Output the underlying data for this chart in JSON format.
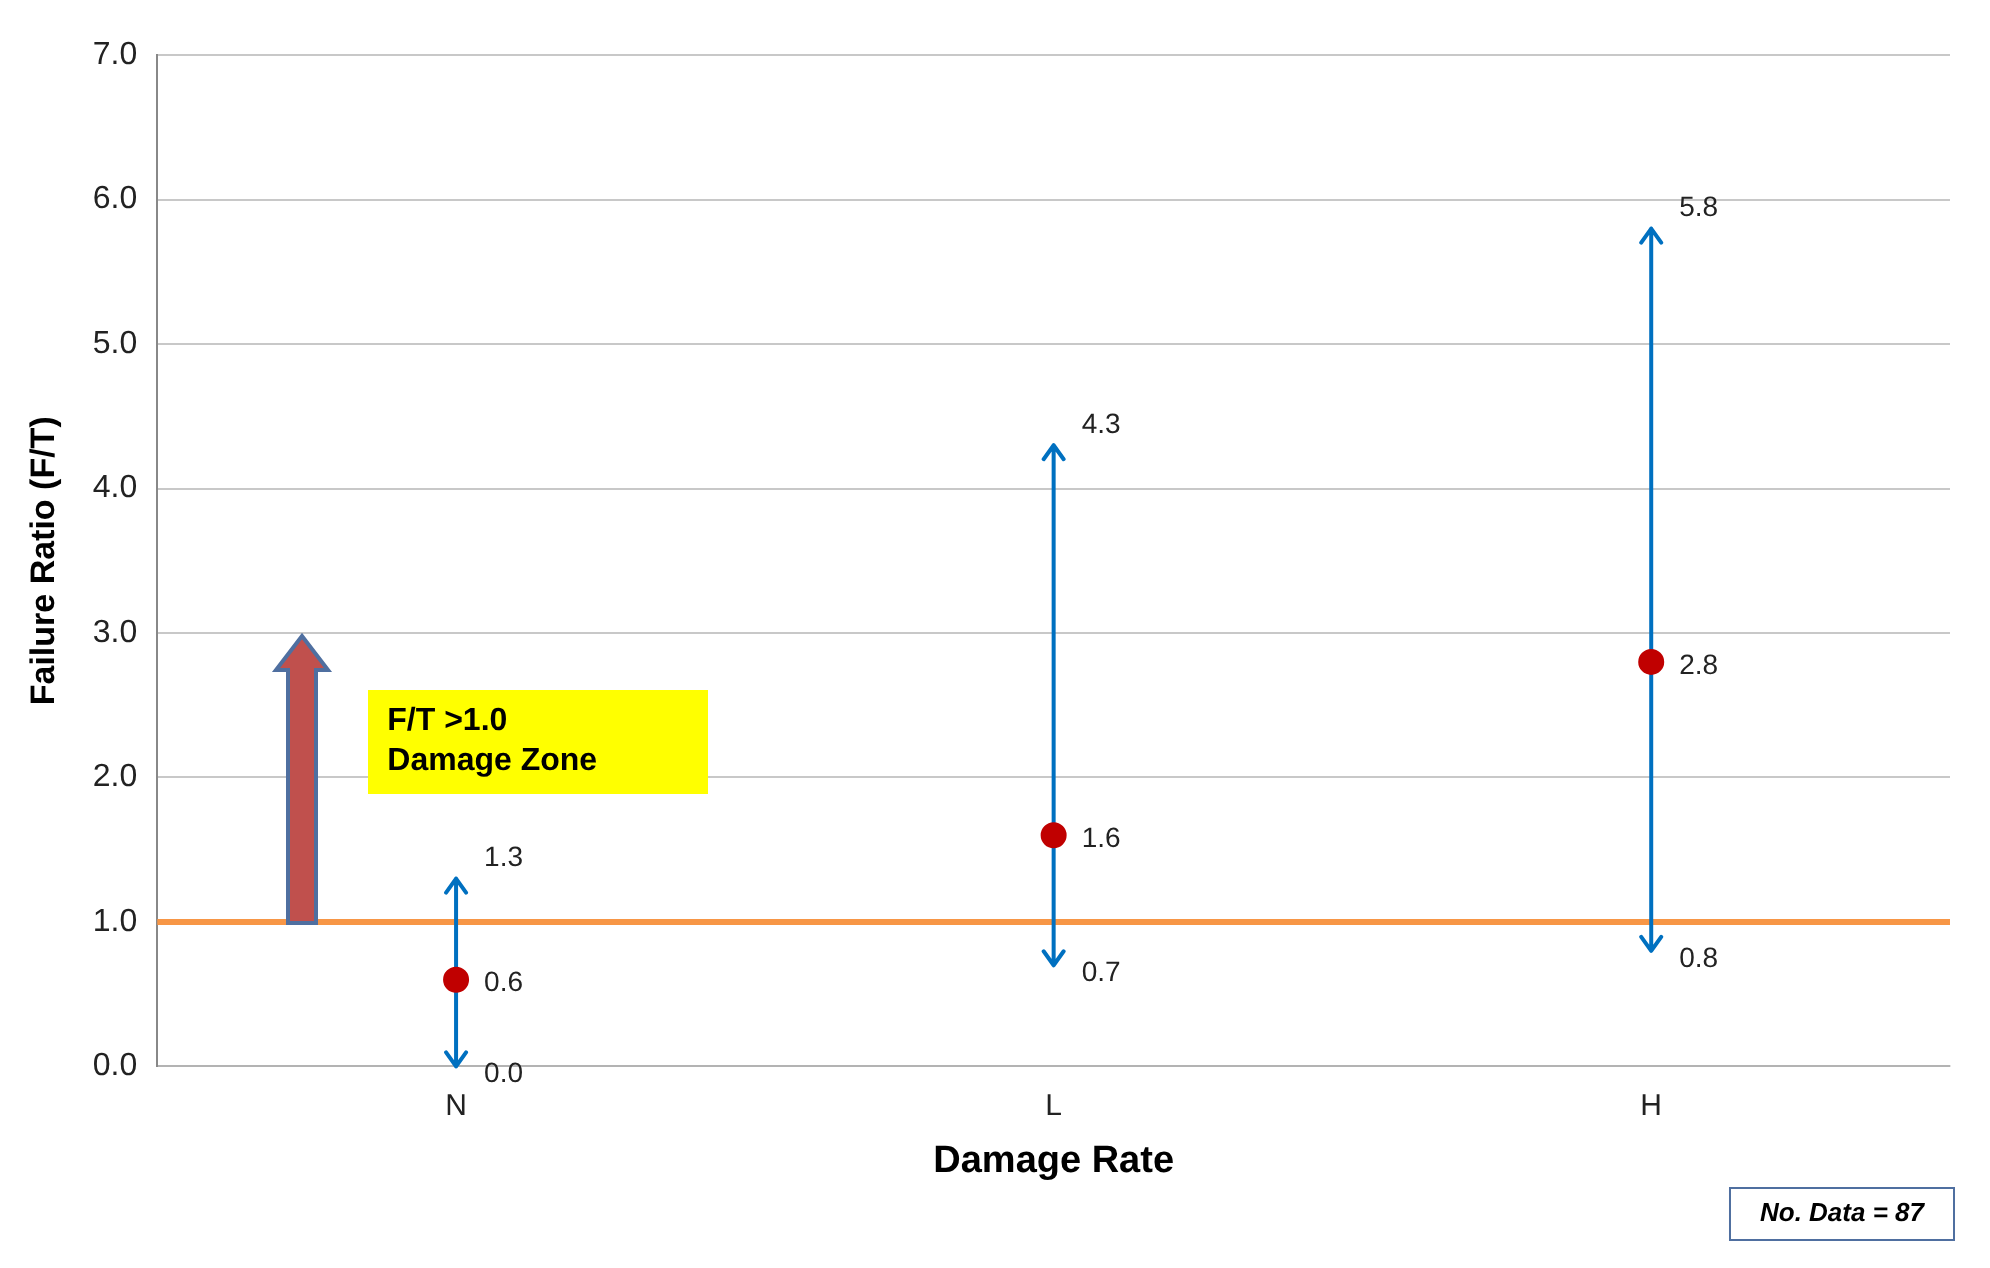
{
  "chart_data": {
    "type": "scatter",
    "xlabel": "Damage Rate",
    "ylabel": "Failure Ratio (F/T)",
    "categories": [
      "N",
      "L",
      "H"
    ],
    "values": [
      0.6,
      1.6,
      2.8
    ],
    "color": "#c00000",
    "errors": [
      [
        0.0,
        1.3
      ],
      [
        0.7,
        4.3
      ],
      [
        0.8,
        5.8
      ]
    ],
    "data_labels": true,
    "marker": "circle",
    "ylim": [
      0,
      7
    ],
    "yticks": [
      {
        "value": 0,
        "label": "0.0"
      },
      {
        "value": 1,
        "label": "1.0"
      },
      {
        "value": 2,
        "label": "2.0"
      },
      {
        "value": 3,
        "label": "3.0"
      },
      {
        "value": 4,
        "label": "4.0"
      },
      {
        "value": 5,
        "label": "5.0"
      },
      {
        "value": 6,
        "label": "6.0"
      },
      {
        "value": 7,
        "label": "7.0"
      }
    ],
    "grid": "y",
    "ref_lines": [
      {
        "axis": "y",
        "value": 1.0,
        "color": "#f79646"
      }
    ],
    "annotations": [
      {
        "text": "1.3",
        "x": "N",
        "y": 1.3
      },
      {
        "text": "0.0",
        "x": "N",
        "y": 0.0
      },
      {
        "text": "4.3",
        "x": "L",
        "y": 4.3
      },
      {
        "text": "0.7",
        "x": "L",
        "y": 0.7
      },
      {
        "text": "5.8",
        "x": "H",
        "y": 5.8
      },
      {
        "text": "0.8",
        "x": "H",
        "y": 0.8
      },
      "F/T >1.0\nDamage Zone",
      "No. Data = 87"
    ]
  }
}
